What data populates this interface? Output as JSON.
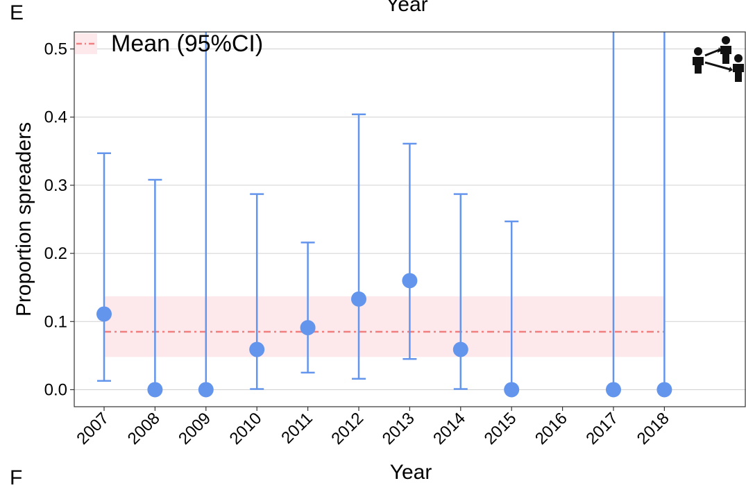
{
  "panel": {
    "label": "E",
    "next_label": "F",
    "top_xlabel": "Year"
  },
  "icon": "people-network-icon",
  "colors": {
    "point": "#6495ED",
    "mean": "#F08080",
    "band": "#FDE8EC"
  },
  "chart_data": {
    "type": "scatter",
    "title": "",
    "xlabel": "Year",
    "ylabel": "Proportion spreaders",
    "categories": [
      "2007",
      "2008",
      "2009",
      "2010",
      "2011",
      "2012",
      "2013",
      "2014",
      "2015",
      "2016",
      "2017",
      "2018"
    ],
    "series": [
      {
        "points": [
          {
            "x": "2007",
            "y": 0.111,
            "lower": 0.013,
            "upper": 0.347
          },
          {
            "x": "2008",
            "y": 0.0,
            "lower": 0.0,
            "upper": 0.308
          },
          {
            "x": "2009",
            "y": 0.0,
            "lower": 0.0,
            "upper": 1.0
          },
          {
            "x": "2010",
            "y": 0.059,
            "lower": 0.001,
            "upper": 0.287
          },
          {
            "x": "2011",
            "y": 0.091,
            "lower": 0.025,
            "upper": 0.216
          },
          {
            "x": "2012",
            "y": 0.133,
            "lower": 0.016,
            "upper": 0.404
          },
          {
            "x": "2013",
            "y": 0.16,
            "lower": 0.045,
            "upper": 0.361
          },
          {
            "x": "2014",
            "y": 0.059,
            "lower": 0.001,
            "upper": 0.287
          },
          {
            "x": "2015",
            "y": 0.0,
            "lower": 0.0,
            "upper": 0.247
          },
          {
            "x": "2017",
            "y": 0.0,
            "lower": 0.0,
            "upper": 1.0
          },
          {
            "x": "2018",
            "y": 0.0,
            "lower": 0.0,
            "upper": 1.0
          }
        ]
      }
    ],
    "mean": {
      "label": "Mean (95%CI)",
      "value": 0.085,
      "lower": 0.048,
      "upper": 0.137,
      "x_start": "2007",
      "x_end": "2018"
    },
    "ylim": [
      -0.025,
      0.525
    ],
    "yticks": [
      0.0,
      0.1,
      0.2,
      0.3,
      0.4,
      0.5
    ],
    "ytick_labels": [
      "0.0",
      "0.1",
      "0.2",
      "0.3",
      "0.4",
      "0.5"
    ],
    "grid": "horizontal-major",
    "legend_position": "top-left"
  }
}
